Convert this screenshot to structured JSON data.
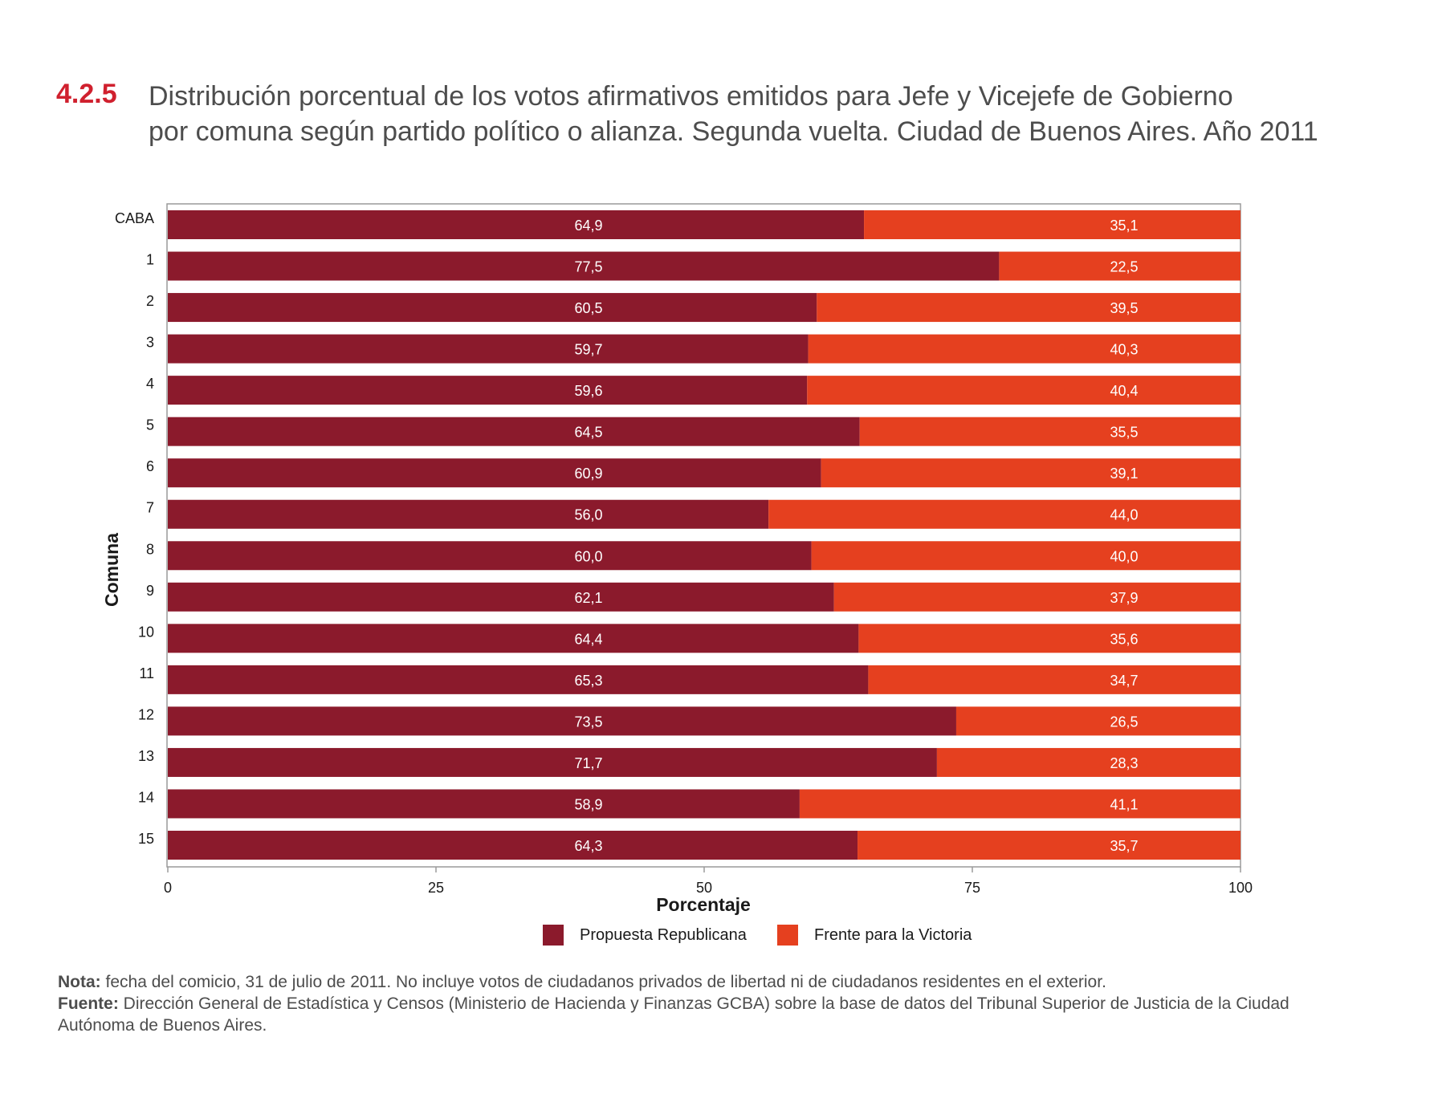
{
  "title": {
    "number": "4.2.5",
    "line1": "Distribución porcentual de los votos afirmativos emitidos para Jefe y Vicejefe de Gobierno",
    "line2": "por comuna según partido político o alianza. Segunda vuelta. Ciudad de Buenos Aires. Año 2011"
  },
  "chart_data": {
    "type": "bar",
    "orientation": "horizontal",
    "stacked": true,
    "categories": [
      "CABA",
      "1",
      "2",
      "3",
      "4",
      "5",
      "6",
      "7",
      "8",
      "9",
      "10",
      "11",
      "12",
      "13",
      "14",
      "15"
    ],
    "series": [
      {
        "name": "Propuesta Republicana",
        "color": "#8b1a2c",
        "values": [
          64.9,
          77.5,
          60.5,
          59.7,
          59.6,
          64.5,
          60.9,
          56.0,
          60.0,
          62.1,
          64.4,
          65.3,
          73.5,
          71.7,
          58.9,
          64.3
        ],
        "labels": [
          "64,9",
          "77,5",
          "60,5",
          "59,7",
          "59,6",
          "64,5",
          "60,9",
          "56,0",
          "60,0",
          "62,1",
          "64,4",
          "65,3",
          "73,5",
          "71,7",
          "58,9",
          "64,3"
        ]
      },
      {
        "name": "Frente para la Victoria",
        "color": "#e5401f",
        "values": [
          35.1,
          22.5,
          39.5,
          40.3,
          40.4,
          35.5,
          39.1,
          44.0,
          40.0,
          37.9,
          35.6,
          34.7,
          26.5,
          28.3,
          41.1,
          35.7
        ],
        "labels": [
          "35,1",
          "22,5",
          "39,5",
          "40,3",
          "40,4",
          "35,5",
          "39,1",
          "44,0",
          "40,0",
          "37,9",
          "35,6",
          "34,7",
          "26,5",
          "28,3",
          "41,1",
          "35,7"
        ]
      }
    ],
    "xlabel": "Porcentaje",
    "ylabel": "Comuna",
    "xlim": [
      0,
      100
    ],
    "xticks": [
      "0",
      "25",
      "50",
      "75",
      "100"
    ],
    "legend_position": "bottom",
    "grid": false
  },
  "notes": {
    "nota_label": "Nota:",
    "nota_text": " fecha del comicio, 31 de julio de 2011. No incluye votos de ciudadanos privados de libertad ni de ciudadanos residentes en el exterior.",
    "fuente_label": "Fuente:",
    "fuente_text": " Dirección General de Estadística y Censos (Ministerio de Hacienda y Finanzas GCBA) sobre la base de datos del Tribunal Superior de Justicia de la Ciudad Autónoma de Buenos Aires."
  }
}
